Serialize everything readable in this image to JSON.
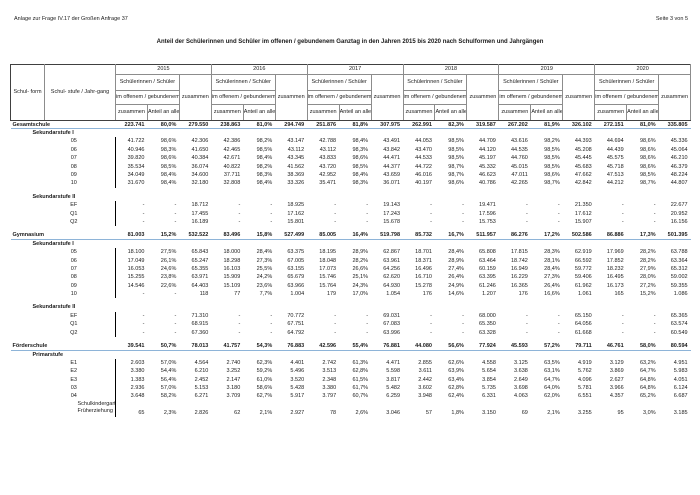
{
  "page": {
    "header_left": "Anlage zur Frage IV.17 der Großen Anfrage 37",
    "header_right": "Seite 3 von 5",
    "title": "Anteil der Schülerinnen und Schüler im offenen / gebundenem Ganztag in den Jahren 2015 bis 2020 nach Schulformen und Jahrgängen"
  },
  "colors": {
    "section_underline": "#8eb4d8",
    "header_border": "#8c8c8c",
    "header_border_dark": "#404040",
    "text": "#1a1a1a"
  },
  "table": {
    "head": {
      "schulform": "Schul-\nform",
      "schulstufe": "Schul-\nstufe / Jahr-gang",
      "years": [
        "2015",
        "2016",
        "2017",
        "2018",
        "2019",
        "2020"
      ],
      "group": "Schülerinnen / Schüler",
      "ganztag": "im offenem / gebundenem Ganztag",
      "zusammen": "zusammen",
      "anteil": "Anteil an\nallen",
      "total": "zusammen"
    },
    "rows": [
      {
        "t": "section",
        "label": "Gesamtschule",
        "values": [
          "223.741",
          "80,0%",
          "279.550",
          "238.863",
          "81,0%",
          "294.749",
          "251.876",
          "81,8%",
          "307.975",
          "262.991",
          "82,3%",
          "319.587",
          "267.202",
          "81,9%",
          "326.102",
          "272.151",
          "81,0%",
          "335.805"
        ]
      },
      {
        "t": "sub",
        "label": "Sekundarstufe I"
      },
      {
        "t": "data",
        "label": "05",
        "values": [
          "41.722",
          "98,6%",
          "42.306",
          "42.386",
          "98,2%",
          "43.147",
          "42.788",
          "98,4%",
          "43.491",
          "44.053",
          "98,5%",
          "44.709",
          "43.616",
          "98,2%",
          "44.393",
          "44.694",
          "98,6%",
          "45.336"
        ]
      },
      {
        "t": "data",
        "label": "06",
        "values": [
          "40.946",
          "98,3%",
          "41.650",
          "42.465",
          "98,5%",
          "43.112",
          "43.112",
          "98,3%",
          "43.842",
          "43.470",
          "98,5%",
          "44.120",
          "44.535",
          "98,5%",
          "45.208",
          "44.439",
          "98,6%",
          "45.064"
        ]
      },
      {
        "t": "data",
        "label": "07",
        "values": [
          "39.820",
          "98,6%",
          "40.384",
          "42.671",
          "98,4%",
          "43.345",
          "43.833",
          "98,6%",
          "44.471",
          "44.533",
          "98,5%",
          "45.197",
          "44.760",
          "98,5%",
          "45.445",
          "45.575",
          "98,6%",
          "46.210"
        ]
      },
      {
        "t": "data",
        "label": "08",
        "values": [
          "35.534",
          "98,5%",
          "36.074",
          "40.822",
          "98,2%",
          "41.562",
          "43.720",
          "98,5%",
          "44.377",
          "44.722",
          "98,7%",
          "45.332",
          "45.015",
          "98,5%",
          "45.683",
          "45.718",
          "98,6%",
          "46.379"
        ]
      },
      {
        "t": "data",
        "label": "09",
        "values": [
          "34.049",
          "98,4%",
          "34.600",
          "37.711",
          "98,3%",
          "38.369",
          "42.952",
          "98,4%",
          "43.659",
          "46.016",
          "98,7%",
          "46.623",
          "47.011",
          "98,6%",
          "47.662",
          "47.513",
          "98,5%",
          "48.224"
        ]
      },
      {
        "t": "data",
        "label": "10",
        "values": [
          "31.670",
          "98,4%",
          "32.180",
          "32.808",
          "98,4%",
          "33.326",
          "35.471",
          "98,3%",
          "36.071",
          "40.197",
          "98,6%",
          "40.786",
          "42.265",
          "98,7%",
          "42.842",
          "44.212",
          "98,7%",
          "44.807"
        ]
      },
      {
        "t": "gap"
      },
      {
        "t": "sub",
        "label": "Sekundarstufe II"
      },
      {
        "t": "data",
        "label": "EF",
        "values": [
          "-",
          "-",
          "18.712",
          "-",
          "-",
          "18.925",
          "-",
          "-",
          "19.143",
          "-",
          "-",
          "19.471",
          "-",
          "-",
          "21.350",
          "-",
          "-",
          "22.677"
        ]
      },
      {
        "t": "data",
        "label": "Q1",
        "values": [
          "-",
          "-",
          "17.455",
          "-",
          "-",
          "17.162",
          "-",
          "-",
          "17.243",
          "-",
          "-",
          "17.596",
          "-",
          "-",
          "17.612",
          "-",
          "-",
          "20.952"
        ]
      },
      {
        "t": "data",
        "label": "Q2",
        "values": [
          "-",
          "-",
          "16.189",
          "-",
          "-",
          "15.801",
          "-",
          "-",
          "15.678",
          "-",
          "-",
          "15.753",
          "-",
          "-",
          "15.907",
          "-",
          "-",
          "16.156"
        ]
      },
      {
        "t": "gap"
      },
      {
        "t": "section",
        "label": "Gymnasium",
        "values": [
          "81.003",
          "15,2%",
          "532.522",
          "83.496",
          "15,8%",
          "527.499",
          "85.005",
          "16,4%",
          "519.798",
          "85.732",
          "16,7%",
          "511.957",
          "86.276",
          "17,2%",
          "502.586",
          "86.886",
          "17,3%",
          "501.395"
        ]
      },
      {
        "t": "sub",
        "label": "Sekundarstufe I"
      },
      {
        "t": "data",
        "label": "05",
        "values": [
          "18.100",
          "27,5%",
          "65.843",
          "18.000",
          "28,4%",
          "63.375",
          "18.195",
          "28,9%",
          "62.867",
          "18.701",
          "28,4%",
          "65.808",
          "17.815",
          "28,3%",
          "62.919",
          "17.969",
          "28,2%",
          "63.788"
        ]
      },
      {
        "t": "data",
        "label": "06",
        "values": [
          "17.049",
          "26,1%",
          "65.247",
          "18.298",
          "27,3%",
          "67.005",
          "18.048",
          "28,2%",
          "63.961",
          "18.371",
          "28,9%",
          "63.464",
          "18.742",
          "28,1%",
          "66.592",
          "17.852",
          "28,2%",
          "63.364"
        ]
      },
      {
        "t": "data",
        "label": "07",
        "values": [
          "16.053",
          "24,6%",
          "65.355",
          "16.103",
          "25,5%",
          "63.155",
          "17.073",
          "26,6%",
          "64.256",
          "16.496",
          "27,4%",
          "60.159",
          "16.949",
          "28,4%",
          "59.772",
          "18.232",
          "27,9%",
          "65.312"
        ]
      },
      {
        "t": "data",
        "label": "08",
        "values": [
          "15.255",
          "23,8%",
          "63.971",
          "15.909",
          "24,2%",
          "65.679",
          "15.746",
          "25,1%",
          "62.620",
          "16.710",
          "26,4%",
          "63.395",
          "16.229",
          "27,3%",
          "59.406",
          "16.495",
          "28,0%",
          "59.002"
        ]
      },
      {
        "t": "data",
        "label": "09",
        "values": [
          "14.546",
          "22,6%",
          "64.403",
          "15.109",
          "23,6%",
          "63.966",
          "15.764",
          "24,3%",
          "64.930",
          "15.278",
          "24,9%",
          "61.246",
          "16.365",
          "26,4%",
          "61.962",
          "16.173",
          "27,2%",
          "59.355"
        ]
      },
      {
        "t": "data",
        "label": "10",
        "values": [
          "-",
          "-",
          "118",
          "77",
          "7,7%",
          "1.004",
          "179",
          "17,0%",
          "1.054",
          "176",
          "14,6%",
          "1.207",
          "176",
          "16,6%",
          "1.061",
          "165",
          "15,2%",
          "1.086"
        ]
      },
      {
        "t": "gap"
      },
      {
        "t": "sub",
        "label": "Sekundarstufe II"
      },
      {
        "t": "data",
        "label": "EF",
        "values": [
          "-",
          "-",
          "71.310",
          "-",
          "-",
          "70.772",
          "-",
          "-",
          "69.031",
          "-",
          "-",
          "68.000",
          "-",
          "-",
          "65.150",
          "-",
          "-",
          "65.365"
        ]
      },
      {
        "t": "data",
        "label": "Q1",
        "values": [
          "-",
          "-",
          "68.915",
          "-",
          "-",
          "67.751",
          "-",
          "-",
          "67.083",
          "-",
          "-",
          "65.350",
          "-",
          "-",
          "64.056",
          "-",
          "-",
          "63.574"
        ]
      },
      {
        "t": "data",
        "label": "Q2",
        "values": [
          "-",
          "-",
          "67.360",
          "-",
          "-",
          "64.792",
          "-",
          "-",
          "63.996",
          "-",
          "-",
          "63.328",
          "-",
          "-",
          "61.668",
          "-",
          "-",
          "60.549"
        ]
      },
      {
        "t": "gap"
      },
      {
        "t": "section",
        "label": "Förderschule",
        "values": [
          "39.541",
          "50,7%",
          "78.013",
          "41.757",
          "54,3%",
          "76.883",
          "42.596",
          "55,4%",
          "76.881",
          "44.080",
          "56,6%",
          "77.924",
          "45.593",
          "57,2%",
          "79.711",
          "46.761",
          "58,0%",
          "80.594"
        ]
      },
      {
        "t": "sub",
        "label": "Primarstufe"
      },
      {
        "t": "data",
        "label": "E1",
        "values": [
          "2.603",
          "57,0%",
          "4.564",
          "2.740",
          "62,3%",
          "4.401",
          "2.742",
          "61,3%",
          "4.471",
          "2.855",
          "62,6%",
          "4.558",
          "3.125",
          "63,5%",
          "4.919",
          "3.129",
          "63,2%",
          "4.951"
        ]
      },
      {
        "t": "data",
        "label": "E2",
        "values": [
          "3.380",
          "54,4%",
          "6.210",
          "3.252",
          "59,2%",
          "5.496",
          "3.513",
          "62,8%",
          "5.598",
          "3.611",
          "63,9%",
          "5.654",
          "3.638",
          "63,1%",
          "5.762",
          "3.869",
          "64,7%",
          "5.983"
        ]
      },
      {
        "t": "data",
        "label": "E3",
        "values": [
          "1.383",
          "56,4%",
          "2.452",
          "2.147",
          "61,0%",
          "3.520",
          "2.348",
          "61,5%",
          "3.817",
          "2.442",
          "63,4%",
          "3.854",
          "2.649",
          "64,7%",
          "4.096",
          "2.627",
          "64,8%",
          "4.051"
        ]
      },
      {
        "t": "data",
        "label": "03",
        "values": [
          "2.936",
          "57,0%",
          "5.153",
          "3.180",
          "58,6%",
          "5.428",
          "3.380",
          "61,7%",
          "5.482",
          "3.602",
          "62,8%",
          "5.735",
          "3.698",
          "64,0%",
          "5.781",
          "3.966",
          "64,8%",
          "6.124"
        ]
      },
      {
        "t": "data",
        "label": "04",
        "values": [
          "3.648",
          "58,2%",
          "6.271",
          "3.709",
          "62,7%",
          "5.917",
          "3.797",
          "60,7%",
          "6.259",
          "3.948",
          "62,4%",
          "6.331",
          "4.063",
          "62,0%",
          "6.551",
          "4.357",
          "65,2%",
          "6.687"
        ]
      },
      {
        "t": "data2",
        "label": "Schulkindergarten/\nFrüherziehung",
        "values": [
          "65",
          "2,3%",
          "2.826",
          "62",
          "2,1%",
          "2.927",
          "78",
          "2,6%",
          "3.046",
          "57",
          "1,8%",
          "3.150",
          "69",
          "2,1%",
          "3.255",
          "95",
          "3,0%",
          "3.185"
        ]
      }
    ]
  }
}
